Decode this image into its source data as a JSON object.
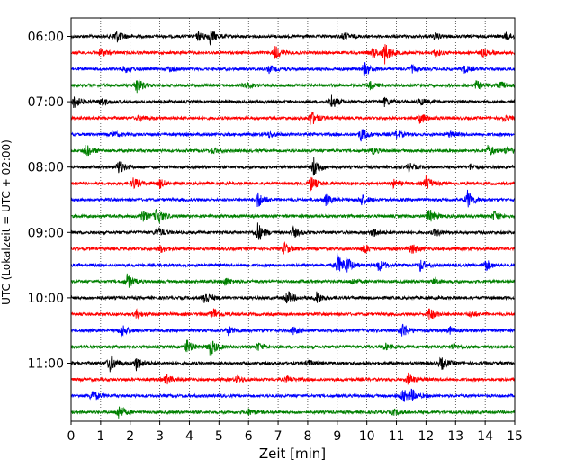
{
  "chart_data": {
    "type": "line",
    "title": "",
    "xlabel": "Zeit  [min]",
    "ylabel": "UTC (Lokalzeit = UTC + 02:00)",
    "xlim": [
      0,
      15
    ],
    "x_ticks": [
      "0",
      "1",
      "2",
      "3",
      "4",
      "5",
      "6",
      "7",
      "8",
      "9",
      "10",
      "11",
      "12",
      "13",
      "14",
      "15"
    ],
    "y_ticks": [
      "06:00",
      "07:00",
      "08:00",
      "09:00",
      "10:00",
      "11:00"
    ],
    "grid": "vertical dotted at each minute",
    "trace_colors": [
      "#000000",
      "#ff0000",
      "#0000ff",
      "#008000"
    ],
    "rows": [
      {
        "start": "06:00",
        "color": "#000000",
        "events": [
          {
            "t": 1.5,
            "a": 1.0
          },
          {
            "t": 4.7,
            "a": 1.0
          },
          {
            "t": 4.3,
            "a": 0.6
          },
          {
            "t": 9.2,
            "a": 0.5
          },
          {
            "t": 12.3,
            "a": 0.4
          },
          {
            "t": 14.7,
            "a": 0.5
          }
        ]
      },
      {
        "start": "06:15",
        "color": "#ff0000",
        "events": [
          {
            "t": 1.0,
            "a": 0.6
          },
          {
            "t": 6.9,
            "a": 0.9
          },
          {
            "t": 10.6,
            "a": 1.4
          },
          {
            "t": 10.2,
            "a": 0.7
          },
          {
            "t": 12.3,
            "a": 0.5
          },
          {
            "t": 13.9,
            "a": 0.5
          }
        ]
      },
      {
        "start": "06:30",
        "color": "#0000ff",
        "events": [
          {
            "t": 1.8,
            "a": 0.5
          },
          {
            "t": 3.3,
            "a": 0.4
          },
          {
            "t": 6.7,
            "a": 0.5
          },
          {
            "t": 9.9,
            "a": 1.0
          },
          {
            "t": 11.5,
            "a": 0.5
          },
          {
            "t": 13.3,
            "a": 0.5
          }
        ]
      },
      {
        "start": "06:45",
        "color": "#008000",
        "events": [
          {
            "t": 2.2,
            "a": 1.2
          },
          {
            "t": 5.9,
            "a": 0.4
          },
          {
            "t": 10.1,
            "a": 0.5
          },
          {
            "t": 13.7,
            "a": 0.6
          },
          {
            "t": 14.5,
            "a": 0.5
          }
        ]
      },
      {
        "start": "07:00",
        "color": "#000000",
        "events": [
          {
            "t": 0.1,
            "a": 0.9
          },
          {
            "t": 1.0,
            "a": 0.6
          },
          {
            "t": 8.8,
            "a": 1.0
          },
          {
            "t": 10.6,
            "a": 0.6
          },
          {
            "t": 11.8,
            "a": 0.5
          }
        ]
      },
      {
        "start": "07:15",
        "color": "#ff0000",
        "events": [
          {
            "t": 2.3,
            "a": 0.4
          },
          {
            "t": 8.1,
            "a": 1.1
          },
          {
            "t": 11.8,
            "a": 0.8
          },
          {
            "t": 14.6,
            "a": 0.4
          }
        ]
      },
      {
        "start": "07:30",
        "color": "#0000ff",
        "events": [
          {
            "t": 1.4,
            "a": 0.4
          },
          {
            "t": 6.7,
            "a": 0.4
          },
          {
            "t": 9.8,
            "a": 1.0
          },
          {
            "t": 11.0,
            "a": 0.5
          },
          {
            "t": 12.8,
            "a": 0.4
          }
        ]
      },
      {
        "start": "07:45",
        "color": "#008000",
        "events": [
          {
            "t": 0.5,
            "a": 0.9
          },
          {
            "t": 4.8,
            "a": 0.4
          },
          {
            "t": 10.2,
            "a": 0.4
          },
          {
            "t": 14.1,
            "a": 0.8
          },
          {
            "t": 14.7,
            "a": 0.6
          }
        ]
      },
      {
        "start": "08:00",
        "color": "#000000",
        "events": [
          {
            "t": 1.6,
            "a": 1.0
          },
          {
            "t": 8.2,
            "a": 1.4
          },
          {
            "t": 11.4,
            "a": 0.6
          },
          {
            "t": 13.5,
            "a": 0.4
          }
        ]
      },
      {
        "start": "08:15",
        "color": "#ff0000",
        "events": [
          {
            "t": 2.1,
            "a": 0.8
          },
          {
            "t": 3.0,
            "a": 0.6
          },
          {
            "t": 8.1,
            "a": 1.0
          },
          {
            "t": 12.0,
            "a": 1.0
          },
          {
            "t": 10.9,
            "a": 0.5
          }
        ]
      },
      {
        "start": "08:30",
        "color": "#0000ff",
        "events": [
          {
            "t": 6.3,
            "a": 1.2
          },
          {
            "t": 8.6,
            "a": 0.8
          },
          {
            "t": 9.8,
            "a": 0.9
          },
          {
            "t": 13.4,
            "a": 1.3
          }
        ]
      },
      {
        "start": "08:45",
        "color": "#008000",
        "events": [
          {
            "t": 2.9,
            "a": 1.3
          },
          {
            "t": 2.4,
            "a": 0.8
          },
          {
            "t": 12.1,
            "a": 1.0
          },
          {
            "t": 14.3,
            "a": 0.7
          }
        ]
      },
      {
        "start": "09:00",
        "color": "#000000",
        "events": [
          {
            "t": 6.3,
            "a": 1.4
          },
          {
            "t": 2.9,
            "a": 0.8
          },
          {
            "t": 7.5,
            "a": 0.7
          },
          {
            "t": 10.2,
            "a": 0.6
          },
          {
            "t": 12.3,
            "a": 0.5
          }
        ]
      },
      {
        "start": "09:15",
        "color": "#ff0000",
        "events": [
          {
            "t": 3.0,
            "a": 0.5
          },
          {
            "t": 7.2,
            "a": 0.8
          },
          {
            "t": 9.9,
            "a": 0.7
          },
          {
            "t": 11.5,
            "a": 0.8
          }
        ]
      },
      {
        "start": "09:30",
        "color": "#0000ff",
        "events": [
          {
            "t": 9.0,
            "a": 1.4
          },
          {
            "t": 9.3,
            "a": 1.0
          },
          {
            "t": 10.4,
            "a": 0.9
          },
          {
            "t": 11.8,
            "a": 0.8
          },
          {
            "t": 14.0,
            "a": 0.9
          }
        ]
      },
      {
        "start": "09:45",
        "color": "#008000",
        "events": [
          {
            "t": 1.9,
            "a": 1.0
          },
          {
            "t": 5.2,
            "a": 0.6
          },
          {
            "t": 9.5,
            "a": 0.4
          },
          {
            "t": 12.3,
            "a": 0.4
          }
        ]
      },
      {
        "start": "10:00",
        "color": "#000000",
        "events": [
          {
            "t": 4.5,
            "a": 1.0
          },
          {
            "t": 7.3,
            "a": 1.0
          },
          {
            "t": 8.3,
            "a": 0.8
          }
        ]
      },
      {
        "start": "10:15",
        "color": "#ff0000",
        "events": [
          {
            "t": 2.2,
            "a": 0.5
          },
          {
            "t": 4.8,
            "a": 0.9
          },
          {
            "t": 12.1,
            "a": 0.9
          },
          {
            "t": 13.5,
            "a": 0.4
          }
        ]
      },
      {
        "start": "10:30",
        "color": "#0000ff",
        "events": [
          {
            "t": 1.7,
            "a": 0.9
          },
          {
            "t": 5.3,
            "a": 0.6
          },
          {
            "t": 7.5,
            "a": 0.5
          },
          {
            "t": 11.2,
            "a": 1.1
          },
          {
            "t": 12.8,
            "a": 0.5
          }
        ]
      },
      {
        "start": "10:45",
        "color": "#008000",
        "events": [
          {
            "t": 3.9,
            "a": 1.0
          },
          {
            "t": 4.7,
            "a": 1.3
          },
          {
            "t": 6.3,
            "a": 0.6
          },
          {
            "t": 10.6,
            "a": 0.5
          },
          {
            "t": 12.9,
            "a": 0.4
          }
        ]
      },
      {
        "start": "11:00",
        "color": "#000000",
        "events": [
          {
            "t": 1.3,
            "a": 1.3
          },
          {
            "t": 2.2,
            "a": 1.0
          },
          {
            "t": 12.5,
            "a": 0.9
          },
          {
            "t": 8.0,
            "a": 0.4
          }
        ]
      },
      {
        "start": "11:15",
        "color": "#ff0000",
        "events": [
          {
            "t": 3.2,
            "a": 0.7
          },
          {
            "t": 5.6,
            "a": 0.5
          },
          {
            "t": 11.4,
            "a": 0.8
          },
          {
            "t": 7.3,
            "a": 0.4
          }
        ]
      },
      {
        "start": "11:30",
        "color": "#0000ff",
        "events": [
          {
            "t": 0.7,
            "a": 0.9
          },
          {
            "t": 11.2,
            "a": 1.0
          },
          {
            "t": 11.5,
            "a": 0.7
          }
        ]
      },
      {
        "start": "11:45",
        "color": "#008000",
        "events": [
          {
            "t": 1.6,
            "a": 1.0
          },
          {
            "t": 6.0,
            "a": 0.4
          },
          {
            "t": 10.9,
            "a": 0.4
          }
        ]
      }
    ]
  }
}
